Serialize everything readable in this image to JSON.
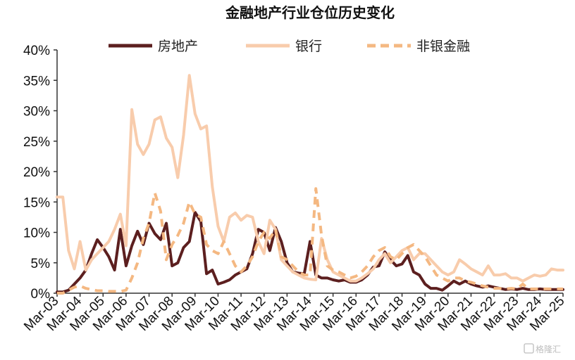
{
  "chart_data": {
    "type": "line",
    "title": "金融地产行业仓位历史变化",
    "xlabel": "",
    "ylabel": "",
    "ylim": [
      0,
      40
    ],
    "yticks": [
      "0%",
      "5%",
      "10%",
      "15%",
      "20%",
      "25%",
      "30%",
      "35%",
      "40%"
    ],
    "x_tick_labels": [
      "Mar-03",
      "Mar-04",
      "Mar-05",
      "Mar-06",
      "Mar-07",
      "Mar-08",
      "Mar-09",
      "Mar-10",
      "Mar-11",
      "Mar-12",
      "Mar-13",
      "Mar-14",
      "Mar-15",
      "Mar-16",
      "Mar-17",
      "Mar-18",
      "Mar-19",
      "Mar-20",
      "Mar-21",
      "Mar-22",
      "Mar-23",
      "Mar-24",
      "Mar-25"
    ],
    "x": [
      2003.0,
      2003.25,
      2003.5,
      2003.75,
      2004.0,
      2004.25,
      2004.5,
      2004.75,
      2005.0,
      2005.25,
      2005.5,
      2005.75,
      2006.0,
      2006.25,
      2006.5,
      2006.75,
      2007.0,
      2007.25,
      2007.5,
      2007.75,
      2008.0,
      2008.25,
      2008.5,
      2008.75,
      2009.0,
      2009.25,
      2009.5,
      2009.75,
      2010.0,
      2010.25,
      2010.5,
      2010.75,
      2011.0,
      2011.25,
      2011.5,
      2011.75,
      2012.0,
      2012.25,
      2012.5,
      2012.75,
      2013.0,
      2013.25,
      2013.5,
      2013.75,
      2014.0,
      2014.25,
      2014.5,
      2014.75,
      2015.0,
      2015.25,
      2015.5,
      2015.75,
      2016.0,
      2016.25,
      2016.5,
      2016.75,
      2017.0,
      2017.25,
      2017.5,
      2017.75,
      2018.0,
      2018.25,
      2018.5,
      2018.75,
      2019.0,
      2019.25,
      2019.5,
      2019.75,
      2020.0,
      2020.25,
      2020.5,
      2020.75,
      2021.0,
      2021.25,
      2021.5,
      2021.75,
      2022.0,
      2022.25,
      2022.5,
      2022.75,
      2023.0,
      2023.25,
      2023.5,
      2023.75,
      2024.0,
      2024.25,
      2024.5,
      2024.75,
      2025.0
    ],
    "series": [
      {
        "name": "房地产",
        "color": "#5c1f1f",
        "dash": "solid",
        "values": [
          0.2,
          0.2,
          0.5,
          1.5,
          2.5,
          3.8,
          6.5,
          8.8,
          7.5,
          6.0,
          3.8,
          10.5,
          4.5,
          7.8,
          10.2,
          8.0,
          11.5,
          9.8,
          8.8,
          11.5,
          4.5,
          5.0,
          7.5,
          8.5,
          13.3,
          11.8,
          3.2,
          3.8,
          1.5,
          1.8,
          2.2,
          3.0,
          3.5,
          4.0,
          6.5,
          10.5,
          10.0,
          7.0,
          10.8,
          8.5,
          5.0,
          3.5,
          3.3,
          3.2,
          8.5,
          3.0,
          2.5,
          2.5,
          2.2,
          2.0,
          2.2,
          1.8,
          1.8,
          2.2,
          3.0,
          4.3,
          4.5,
          6.8,
          5.5,
          4.5,
          4.8,
          6.2,
          3.5,
          3.0,
          1.5,
          0.8,
          0.8,
          0.5,
          1.2,
          2.0,
          1.5,
          2.0,
          1.5,
          1.2,
          1.0,
          1.2,
          1.0,
          0.8,
          0.6,
          0.7,
          0.6,
          0.8,
          0.6,
          0.6,
          0.7,
          0.6,
          0.6,
          0.6,
          0.6
        ]
      },
      {
        "name": "银行",
        "color": "#f8ccac",
        "dash": "solid",
        "values": [
          15.8,
          15.8,
          7.0,
          4.0,
          8.5,
          3.8,
          5.5,
          6.5,
          7.5,
          8.5,
          10.5,
          13.0,
          7.8,
          30.2,
          24.5,
          22.8,
          24.5,
          28.5,
          29.0,
          25.5,
          24.0,
          19.0,
          26.0,
          35.8,
          29.5,
          27.0,
          27.5,
          17.5,
          11.0,
          8.5,
          12.5,
          13.2,
          12.0,
          12.8,
          12.5,
          8.5,
          6.5,
          12.0,
          10.5,
          5.5,
          4.5,
          3.5,
          3.0,
          2.5,
          2.3,
          2.2,
          9.0,
          5.5,
          3.5,
          3.0,
          2.5,
          2.0,
          2.0,
          2.5,
          3.2,
          4.0,
          5.5,
          6.5,
          5.0,
          6.0,
          7.0,
          7.5,
          5.5,
          6.5,
          6.5,
          5.5,
          4.5,
          3.5,
          3.0,
          3.5,
          5.5,
          4.8,
          4.0,
          3.5,
          3.0,
          4.5,
          3.0,
          3.0,
          3.2,
          2.5,
          2.5,
          2.0,
          2.5,
          3.0,
          2.8,
          3.0,
          4.0,
          3.8,
          3.8
        ]
      },
      {
        "name": "非银金融",
        "color": "#f4b882",
        "dash": "dashed",
        "values": [
          0.0,
          0.0,
          0.5,
          1.0,
          1.2,
          0.8,
          0.6,
          0.4,
          0.4,
          0.3,
          0.3,
          0.3,
          0.5,
          2.5,
          5.0,
          9.0,
          11.5,
          16.5,
          13.5,
          5.5,
          8.0,
          9.5,
          11.5,
          15.0,
          13.0,
          12.5,
          8.0,
          7.0,
          6.5,
          8.5,
          6.5,
          4.5,
          3.5,
          4.5,
          6.0,
          8.5,
          10.0,
          9.0,
          10.5,
          6.0,
          5.5,
          4.5,
          3.5,
          3.0,
          3.0,
          17.2,
          9.5,
          4.5,
          3.8,
          3.5,
          3.0,
          2.5,
          2.8,
          3.5,
          4.5,
          6.0,
          7.0,
          7.5,
          6.0,
          5.5,
          6.5,
          7.5,
          8.0,
          7.0,
          6.0,
          4.5,
          3.0,
          2.5,
          2.0,
          2.5,
          2.5,
          2.0,
          1.8,
          1.5,
          1.2,
          1.0,
          0.8,
          0.8,
          0.7,
          0.8,
          0.7,
          1.5,
          0.7,
          0.7,
          0.7,
          0.7,
          0.7,
          0.7,
          0.7
        ]
      }
    ],
    "legend": "top",
    "grid": false
  },
  "watermark_text": "格隆汇",
  "watermark_icon": "gelonghui-logo-icon"
}
